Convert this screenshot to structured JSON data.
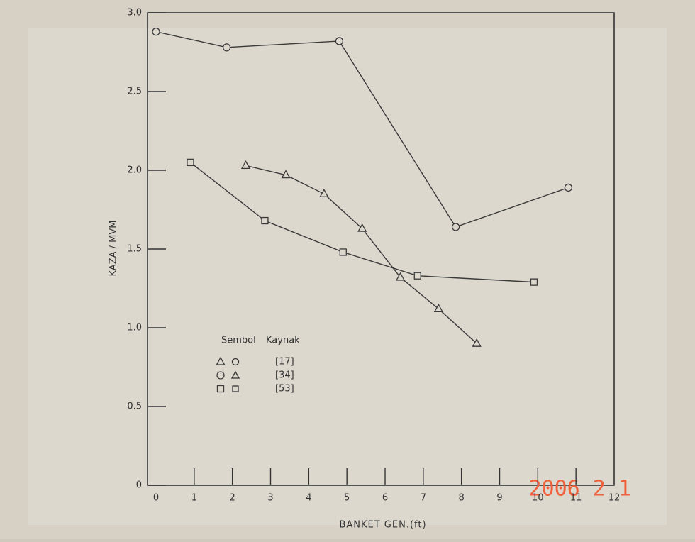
{
  "chart_data": {
    "type": "line",
    "x_label": "BANKET GEN.(ft)",
    "y_label": "KAZA / MVM",
    "xlim": [
      0,
      12
    ],
    "xticks": [
      0,
      1,
      2,
      3,
      4,
      5,
      6,
      7,
      8,
      9,
      10,
      11,
      12
    ],
    "ylim": [
      0,
      3
    ],
    "yticks": [
      0,
      {
        "value": 0.5,
        "label": "0.5"
      },
      {
        "value": 1,
        "label": "1.0"
      },
      {
        "value": 1.5,
        "label": "1.5"
      },
      {
        "value": 2,
        "label": "2.0"
      },
      {
        "value": 2.5,
        "label": "2.5"
      },
      {
        "value": 3,
        "label": "3.0"
      }
    ],
    "grid": false,
    "legend_headers": [
      "Sembol",
      "Kaynak"
    ],
    "series": [
      {
        "name": "[17]",
        "marker": "triangle",
        "color": "#3a3a3a",
        "x": [
          2.35,
          3.4,
          4.4,
          5.4,
          6.4,
          7.4,
          8.4
        ],
        "values": [
          2.03,
          1.97,
          1.85,
          1.63,
          1.32,
          1.12,
          0.9
        ]
      },
      {
        "name": "[34]",
        "marker": "circle",
        "color": "#3a3a3a",
        "x": [
          0,
          1.85,
          4.8,
          7.85,
          10.8
        ],
        "values": [
          2.88,
          2.78,
          2.82,
          1.64,
          1.89
        ]
      },
      {
        "name": "[53]",
        "marker": "square",
        "color": "#3a3a3a",
        "x": [
          0.9,
          2.85,
          4.9,
          6.85,
          9.9
        ],
        "values": [
          2.05,
          1.68,
          1.48,
          1.33,
          1.29
        ]
      }
    ],
    "annotation": "2006 2 1",
    "annotation_color": "#f0603a"
  }
}
